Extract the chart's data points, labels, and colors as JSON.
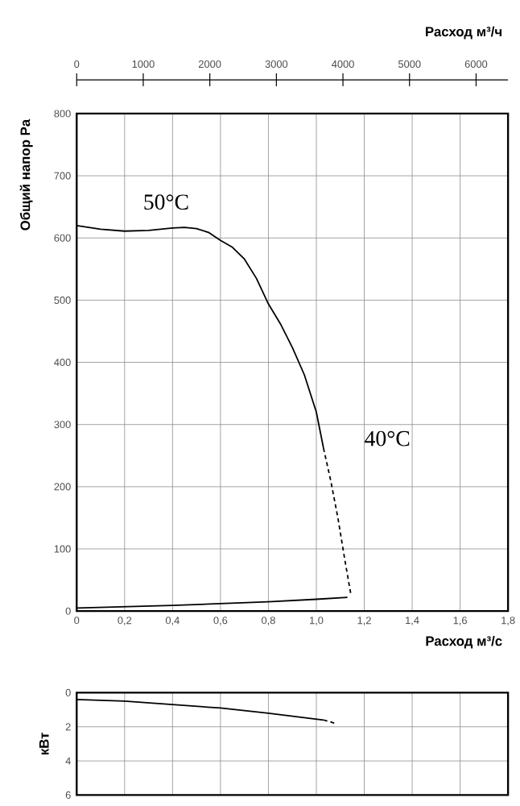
{
  "chart_data": [
    {
      "type": "line",
      "xlabel": "Расход м³/с",
      "ylabel": "Общий напор Pa",
      "x2label": "Расход м³/ч",
      "xlim": [
        0,
        1.8
      ],
      "ylim": [
        0,
        800
      ],
      "x2lim": [
        0,
        6480
      ],
      "xticks": [
        {
          "value": 0,
          "label": "0"
        },
        {
          "value": 0.2,
          "label": "0,2"
        },
        {
          "value": 0.4,
          "label": "0,4"
        },
        {
          "value": 0.6,
          "label": "0,6"
        },
        {
          "value": 0.8,
          "label": "0,8"
        },
        {
          "value": 1.0,
          "label": "1,0"
        },
        {
          "value": 1.2,
          "label": "1,2"
        },
        {
          "value": 1.4,
          "label": "1,4"
        },
        {
          "value": 1.6,
          "label": "1,6"
        },
        {
          "value": 1.8,
          "label": "1,8"
        }
      ],
      "yticks": [
        0,
        100,
        200,
        300,
        400,
        500,
        600,
        700,
        800
      ],
      "x2ticks": [
        0,
        1000,
        2000,
        3000,
        4000,
        5000,
        6000
      ],
      "grid": true,
      "marker": "none",
      "series": [
        {
          "name": "50°C",
          "color": "#000000",
          "line_style": "solid",
          "x": [
            0,
            0.1,
            0.2,
            0.3,
            0.4,
            0.45,
            0.5,
            0.55,
            0.6,
            0.65,
            0.7,
            0.75,
            0.8,
            0.85,
            0.9,
            0.95,
            1.0,
            1.03
          ],
          "values": [
            620,
            614,
            611,
            612,
            616,
            617,
            615,
            609,
            596,
            585,
            566,
            535,
            494,
            462,
            424,
            380,
            320,
            262
          ]
        },
        {
          "name": "40°C",
          "color": "#000000",
          "line_style": "dashed",
          "x": [
            1.03,
            1.06,
            1.09,
            1.12,
            1.145
          ],
          "values": [
            262,
            210,
            150,
            80,
            25
          ]
        },
        {
          "color": "#000000",
          "line_style": "solid",
          "x": [
            0,
            0.2,
            0.4,
            0.6,
            0.8,
            1.0,
            1.13
          ],
          "values": [
            5,
            7,
            9,
            12,
            15,
            19,
            22
          ]
        }
      ]
    },
    {
      "type": "line",
      "ylabel": "кВт",
      "xlim": [
        0,
        1.8
      ],
      "ylim": [
        6,
        0
      ],
      "xticks": [
        0,
        0.2,
        0.4,
        0.6,
        0.8,
        1.0,
        1.2,
        1.4,
        1.6,
        1.8
      ],
      "yticks": [
        0,
        2,
        4,
        6
      ],
      "tick_labels": "y",
      "grid": true,
      "marker": "none",
      "series": [
        {
          "color": "#000000",
          "line_style": "solid",
          "x": [
            0,
            0.2,
            0.4,
            0.6,
            0.8,
            1.03
          ],
          "values": [
            0.4,
            0.5,
            0.7,
            0.9,
            1.2,
            1.6
          ]
        },
        {
          "color": "#000000",
          "line_style": "dashed",
          "x": [
            1.03,
            1.08
          ],
          "values": [
            1.6,
            1.8
          ]
        }
      ]
    }
  ]
}
